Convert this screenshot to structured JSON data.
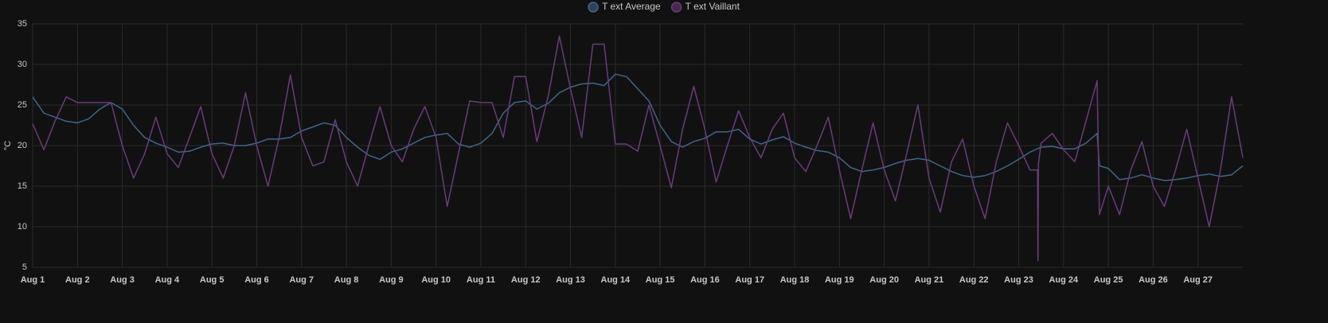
{
  "chart_data": {
    "type": "line",
    "ylabel": "°C",
    "xlim": [
      1,
      28
    ],
    "ylim": [
      5,
      35
    ],
    "yticks": [
      5,
      10,
      15,
      20,
      25,
      30,
      35
    ],
    "xticks": [
      {
        "value": 1,
        "label": "Aug 1"
      },
      {
        "value": 2,
        "label": "Aug 2"
      },
      {
        "value": 3,
        "label": "Aug 3"
      },
      {
        "value": 4,
        "label": "Aug 4"
      },
      {
        "value": 5,
        "label": "Aug 5"
      },
      {
        "value": 6,
        "label": "Aug 6"
      },
      {
        "value": 7,
        "label": "Aug 7"
      },
      {
        "value": 8,
        "label": "Aug 8"
      },
      {
        "value": 9,
        "label": "Aug 9"
      },
      {
        "value": 10,
        "label": "Aug 10"
      },
      {
        "value": 11,
        "label": "Aug 11"
      },
      {
        "value": 12,
        "label": "Aug 12"
      },
      {
        "value": 13,
        "label": "Aug 13"
      },
      {
        "value": 14,
        "label": "Aug 14"
      },
      {
        "value": 15,
        "label": "Aug 15"
      },
      {
        "value": 16,
        "label": "Aug 16"
      },
      {
        "value": 17,
        "label": "Aug 17"
      },
      {
        "value": 18,
        "label": "Aug 18"
      },
      {
        "value": 19,
        "label": "Aug 19"
      },
      {
        "value": 20,
        "label": "Aug 20"
      },
      {
        "value": 21,
        "label": "Aug 21"
      },
      {
        "value": 22,
        "label": "Aug 22"
      },
      {
        "value": 23,
        "label": "Aug 23"
      },
      {
        "value": 24,
        "label": "Aug 24"
      },
      {
        "value": 25,
        "label": "Aug 25"
      },
      {
        "value": 26,
        "label": "Aug 26"
      },
      {
        "value": 27,
        "label": "Aug 27"
      }
    ],
    "grid": true,
    "legend": "top",
    "series": [
      {
        "name": "T ext Average",
        "color": "#3f6688",
        "x": [
          1,
          1.25,
          1.5,
          1.75,
          2,
          2.25,
          2.5,
          2.75,
          3,
          3.25,
          3.5,
          3.75,
          4,
          4.25,
          4.5,
          4.75,
          5,
          5.25,
          5.5,
          5.75,
          6,
          6.25,
          6.5,
          6.75,
          7,
          7.25,
          7.5,
          7.75,
          8,
          8.25,
          8.5,
          8.75,
          9,
          9.25,
          9.5,
          9.75,
          10,
          10.25,
          10.5,
          10.75,
          11,
          11.25,
          11.5,
          11.75,
          12,
          12.25,
          12.5,
          12.75,
          13,
          13.25,
          13.5,
          13.75,
          14,
          14.25,
          14.5,
          14.75,
          15,
          15.25,
          15.5,
          15.75,
          16,
          16.25,
          16.5,
          16.75,
          17,
          17.25,
          17.5,
          17.75,
          18,
          18.25,
          18.5,
          18.75,
          19,
          19.25,
          19.5,
          19.75,
          20,
          20.25,
          20.5,
          20.75,
          21,
          21.25,
          21.5,
          21.75,
          22,
          22.25,
          22.5,
          22.75,
          23,
          23.25,
          23.5,
          23.75,
          24,
          24.25,
          24.5,
          24.75,
          24.8,
          25,
          25.25,
          25.5,
          25.75,
          26,
          26.25,
          26.5,
          26.75,
          27,
          27.25,
          27.5,
          27.75,
          28
        ],
        "values": [
          26,
          24,
          23.5,
          23,
          22.8,
          23.3,
          24.5,
          25.3,
          24.5,
          22.5,
          21,
          20.3,
          19.8,
          19.2,
          19.3,
          19.8,
          20.2,
          20.3,
          20,
          20,
          20.3,
          20.8,
          20.8,
          21,
          21.8,
          22.3,
          22.8,
          22.5,
          21,
          19.8,
          18.8,
          18.3,
          19.2,
          19.6,
          20.3,
          21,
          21.3,
          21.5,
          20.2,
          19.8,
          20.3,
          21.5,
          24,
          25.3,
          25.5,
          24.5,
          25.2,
          26.5,
          27.2,
          27.6,
          27.7,
          27.4,
          28.8,
          28.5,
          27,
          25.5,
          22.5,
          20.5,
          19.8,
          20.5,
          20.9,
          21.7,
          21.7,
          22,
          20.8,
          20.2,
          20.7,
          21.1,
          20.3,
          19.8,
          19.4,
          19.2,
          18.5,
          17.3,
          16.8,
          17,
          17.3,
          17.8,
          18.2,
          18.4,
          18.2,
          17.5,
          16.8,
          16.3,
          16.1,
          16.3,
          16.8,
          17.5,
          18.3,
          19.2,
          19.8,
          19.9,
          19.6,
          19.6,
          20.3,
          21.5,
          17.5,
          17.2,
          15.8,
          16,
          16.4,
          16,
          15.7,
          15.8,
          16,
          16.3,
          16.5,
          16.2,
          16.4,
          17.5
        ]
      },
      {
        "name": "T ext Vaillant",
        "color": "#6b3a7d",
        "x": [
          1,
          1.25,
          1.5,
          1.75,
          2,
          2.25,
          2.5,
          2.75,
          3,
          3.25,
          3.5,
          3.75,
          4,
          4.25,
          4.5,
          4.75,
          5,
          5.25,
          5.5,
          5.75,
          6,
          6.25,
          6.5,
          6.75,
          7,
          7.25,
          7.5,
          7.75,
          8,
          8.25,
          8.5,
          8.75,
          9,
          9.25,
          9.5,
          9.75,
          10,
          10.25,
          10.5,
          10.75,
          11,
          11.25,
          11.5,
          11.75,
          12,
          12.25,
          12.5,
          12.75,
          13,
          13.25,
          13.5,
          13.75,
          14,
          14.25,
          14.5,
          14.75,
          15,
          15.25,
          15.5,
          15.75,
          16,
          16.25,
          16.5,
          16.75,
          17,
          17.25,
          17.5,
          17.75,
          18,
          18.25,
          18.5,
          18.75,
          19,
          19.25,
          19.5,
          19.75,
          20,
          20.25,
          20.5,
          20.75,
          21,
          21.25,
          21.5,
          21.75,
          22,
          22.25,
          22.5,
          22.75,
          23,
          23.25,
          23.42,
          23.43,
          23.44,
          23.5,
          23.75,
          24,
          24.25,
          24.5,
          24.75,
          24.8,
          25,
          25.25,
          25.5,
          25.75,
          26,
          26.25,
          26.5,
          26.75,
          27,
          27.25,
          27.5,
          27.75,
          28
        ],
        "values": [
          22.7,
          19.5,
          23,
          26,
          25.3,
          25.3,
          25.3,
          25.3,
          20,
          16,
          19,
          23.5,
          19,
          17.3,
          21,
          24.8,
          19,
          16,
          20,
          26.5,
          20,
          15,
          21,
          28.7,
          21,
          17.5,
          18,
          23.2,
          18,
          15,
          20,
          24.8,
          20,
          18,
          22,
          24.8,
          21,
          12.5,
          19,
          25.5,
          25.3,
          25.3,
          21,
          28.5,
          28.5,
          20.5,
          26,
          33.5,
          27,
          21,
          32.5,
          32.5,
          20.2,
          20.2,
          19.3,
          25,
          20,
          14.8,
          22,
          27.3,
          22,
          15.5,
          20,
          24.3,
          21,
          18.5,
          22,
          24,
          18.5,
          16.8,
          20,
          23.5,
          17,
          11,
          17,
          22.8,
          17,
          13.2,
          19,
          25,
          16,
          11.8,
          18,
          20.8,
          15,
          11,
          18,
          22.8,
          20,
          17,
          17,
          5.8,
          17.8,
          20.3,
          21.5,
          19.5,
          18,
          23,
          28,
          11.5,
          15,
          11.5,
          17,
          20.5,
          15,
          12.5,
          17,
          22,
          16,
          10,
          17,
          26,
          18.5
        ]
      }
    ]
  }
}
